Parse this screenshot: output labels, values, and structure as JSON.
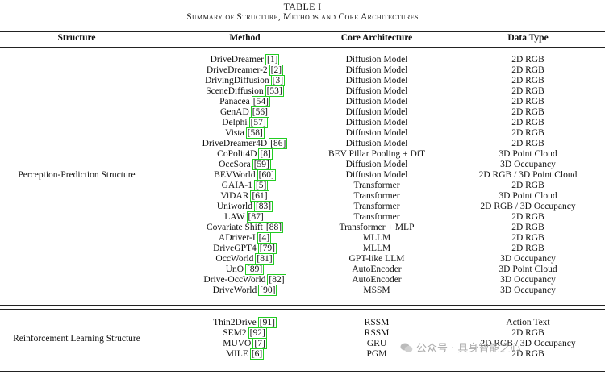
{
  "caption": {
    "label": "TABLE I",
    "title": "Summary of Structure, Methods and Core Architectures"
  },
  "headers": {
    "structure": "Structure",
    "method": "Method",
    "architecture": "Core Architecture",
    "data_type": "Data Type"
  },
  "groups": [
    {
      "structure": "Perception-Prediction Structure",
      "rows": [
        {
          "method": "DriveDreamer",
          "ref": "[1]",
          "architecture": "Diffusion Model",
          "data_type": "2D RGB"
        },
        {
          "method": "DriveDreamer-2",
          "ref": "[2]",
          "architecture": "Diffusion Model",
          "data_type": "2D RGB"
        },
        {
          "method": "DrivingDiffusion",
          "ref": "[3]",
          "architecture": "Diffusion Model",
          "data_type": "2D RGB"
        },
        {
          "method": "SceneDiffusion",
          "ref": "[53]",
          "architecture": "Diffusion Model",
          "data_type": "2D RGB"
        },
        {
          "method": "Panacea",
          "ref": "[54]",
          "architecture": "Diffusion Model",
          "data_type": "2D RGB"
        },
        {
          "method": "GenAD",
          "ref": "[56]",
          "architecture": "Diffusion Model",
          "data_type": "2D RGB"
        },
        {
          "method": "Delphi",
          "ref": "[57]",
          "architecture": "Diffusion Model",
          "data_type": "2D RGB"
        },
        {
          "method": "Vista",
          "ref": "[58]",
          "architecture": "Diffusion Model",
          "data_type": "2D RGB"
        },
        {
          "method": "DriveDreamer4D",
          "ref": "[86]",
          "architecture": "Diffusion Model",
          "data_type": "2D RGB"
        },
        {
          "method": "CoPolit4D",
          "ref": "[8]",
          "architecture": "BEV Pillar Pooling + DiT",
          "data_type": "3D Point Cloud"
        },
        {
          "method": "OccSora",
          "ref": "[59]",
          "architecture": "Diffusion Model",
          "data_type": "3D Occupancy"
        },
        {
          "method": "BEVWorld",
          "ref": "[60]",
          "architecture": "Diffusion Model",
          "data_type": "2D RGB / 3D Point Cloud"
        },
        {
          "method": "GAIA-1",
          "ref": "[5]",
          "architecture": "Transformer",
          "data_type": "2D RGB"
        },
        {
          "method": "ViDAR",
          "ref": "[61]",
          "architecture": "Transformer",
          "data_type": "3D Point Cloud"
        },
        {
          "method": "Uniworld",
          "ref": "[83]",
          "architecture": "Transformer",
          "data_type": "2D RGB / 3D Occupancy"
        },
        {
          "method": "LAW",
          "ref": "[87]",
          "architecture": "Transformer",
          "data_type": "2D RGB"
        },
        {
          "method": "Covariate Shift",
          "ref": "[88]",
          "architecture": "Transformer + MLP",
          "data_type": "2D RGB"
        },
        {
          "method": "ADriver-I",
          "ref": "[4]",
          "architecture": "MLLM",
          "data_type": "2D RGB"
        },
        {
          "method": "DriveGPT4",
          "ref": "[79]",
          "architecture": "MLLM",
          "data_type": "2D RGB"
        },
        {
          "method": "OccWorld",
          "ref": "[81]",
          "architecture": "GPT-like LLM",
          "data_type": "3D Occupancy"
        },
        {
          "method": "UnO",
          "ref": "[89]",
          "architecture": "AutoEncoder",
          "data_type": "3D Point Cloud"
        },
        {
          "method": "Drive-OccWorld",
          "ref": "[82]",
          "architecture": "AutoEncoder",
          "data_type": "3D Occupancy"
        },
        {
          "method": "DriveWorld",
          "ref": "[90]",
          "architecture": "MSSM",
          "data_type": "3D Occupancy"
        }
      ]
    },
    {
      "structure": "Reinforcement Learning Structure",
      "rows": [
        {
          "method": "Thin2Drive",
          "ref": "[91]",
          "architecture": "RSSM",
          "data_type": "Action Text"
        },
        {
          "method": "SEM2",
          "ref": "[92]",
          "architecture": "RSSM",
          "data_type": "2D RGB"
        },
        {
          "method": "MUVO",
          "ref": "[7]",
          "architecture": "GRU",
          "data_type": "2D RGB / 3D Occupancy"
        },
        {
          "method": "MILE",
          "ref": "[6]",
          "architecture": "PGM",
          "data_type": "2D RGB"
        }
      ]
    }
  ],
  "watermark": {
    "text": "公众号 · 具身智能之心",
    "icon": "wechat-icon"
  }
}
